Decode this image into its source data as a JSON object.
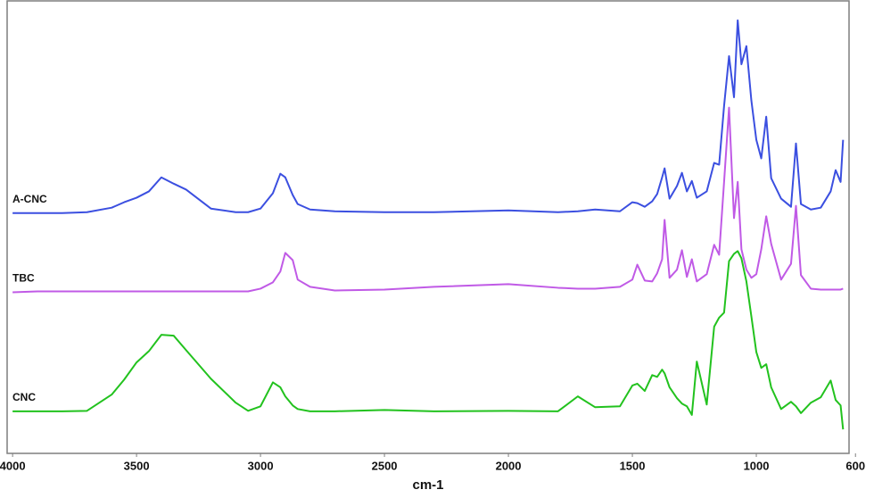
{
  "chart_data": {
    "type": "line",
    "x_label": "cm-1",
    "xlim": [
      4022,
      626
    ],
    "ylim": [
      0,
      100
    ],
    "xticks": [
      4000,
      3500,
      3000,
      2500,
      2000,
      1500,
      1000,
      600
    ],
    "x": [
      4000,
      3900,
      3800,
      3700,
      3600,
      3550,
      3500,
      3450,
      3400,
      3350,
      3300,
      3200,
      3100,
      3050,
      3000,
      2950,
      2920,
      2900,
      2870,
      2850,
      2800,
      2700,
      2500,
      2300,
      2000,
      1800,
      1720,
      1650,
      1550,
      1500,
      1480,
      1450,
      1420,
      1400,
      1380,
      1370,
      1350,
      1320,
      1300,
      1280,
      1260,
      1240,
      1200,
      1170,
      1150,
      1130,
      1110,
      1090,
      1075,
      1060,
      1040,
      1020,
      1000,
      980,
      960,
      940,
      900,
      860,
      840,
      820,
      780,
      740,
      700,
      680,
      660,
      650
    ],
    "series": [
      {
        "name": "A-CNC",
        "color": "#3b4fe0",
        "values": [
          53.1,
          53.1,
          53.1,
          53.3,
          54.3,
          55.5,
          56.5,
          57.9,
          61.0,
          59.6,
          58.3,
          54.1,
          53.3,
          53.3,
          54.1,
          57.5,
          61.8,
          61.0,
          57.1,
          55.1,
          53.9,
          53.5,
          53.3,
          53.3,
          53.7,
          53.3,
          53.5,
          53.9,
          53.5,
          55.5,
          55.3,
          54.5,
          55.7,
          57.3,
          61.0,
          63.0,
          56.3,
          59.1,
          62.0,
          57.9,
          60.2,
          56.5,
          57.9,
          64.2,
          63.8,
          76.8,
          87.8,
          78.7,
          95.7,
          86.0,
          90.0,
          78.0,
          69.3,
          65.2,
          74.4,
          60.8,
          56.3,
          54.5,
          68.5,
          55.1,
          53.9,
          54.3,
          57.9,
          62.6,
          60.0,
          69.3
        ]
      },
      {
        "name": "TBC",
        "color": "#c05ae6",
        "values": [
          35.6,
          35.8,
          35.8,
          35.8,
          35.8,
          35.8,
          35.8,
          35.8,
          35.8,
          35.8,
          35.8,
          35.8,
          35.8,
          35.8,
          36.4,
          37.8,
          40.2,
          44.3,
          42.7,
          38.4,
          36.8,
          36.0,
          36.2,
          36.8,
          37.4,
          36.6,
          36.4,
          36.4,
          36.8,
          38.4,
          41.7,
          38.2,
          38.0,
          39.8,
          42.9,
          51.6,
          38.8,
          40.6,
          44.9,
          39.0,
          42.9,
          38.0,
          39.6,
          46.1,
          43.9,
          60.0,
          76.4,
          52.0,
          60.0,
          45.1,
          40.6,
          38.8,
          39.6,
          45.1,
          52.4,
          46.3,
          38.4,
          41.9,
          54.7,
          39.4,
          36.4,
          36.2,
          36.2,
          36.2,
          36.2,
          36.4
        ]
      },
      {
        "name": "CNC",
        "color": "#22c21e",
        "values": [
          9.3,
          9.3,
          9.3,
          9.4,
          13.0,
          16.3,
          20.1,
          22.6,
          26.2,
          26.0,
          22.8,
          16.5,
          11.2,
          9.4,
          10.4,
          15.7,
          14.6,
          12.6,
          10.6,
          9.8,
          9.3,
          9.3,
          9.6,
          9.3,
          9.4,
          9.3,
          12.6,
          10.2,
          10.4,
          15.0,
          15.4,
          13.8,
          17.3,
          16.9,
          18.5,
          17.7,
          14.6,
          12.2,
          11.0,
          10.4,
          8.5,
          20.3,
          10.8,
          28.0,
          30.0,
          31.1,
          42.5,
          44.1,
          44.7,
          43.1,
          38.0,
          30.3,
          22.4,
          18.9,
          19.7,
          14.6,
          9.8,
          11.4,
          10.4,
          8.9,
          11.2,
          12.4,
          16.1,
          11.8,
          10.6,
          5.3
        ]
      }
    ]
  }
}
